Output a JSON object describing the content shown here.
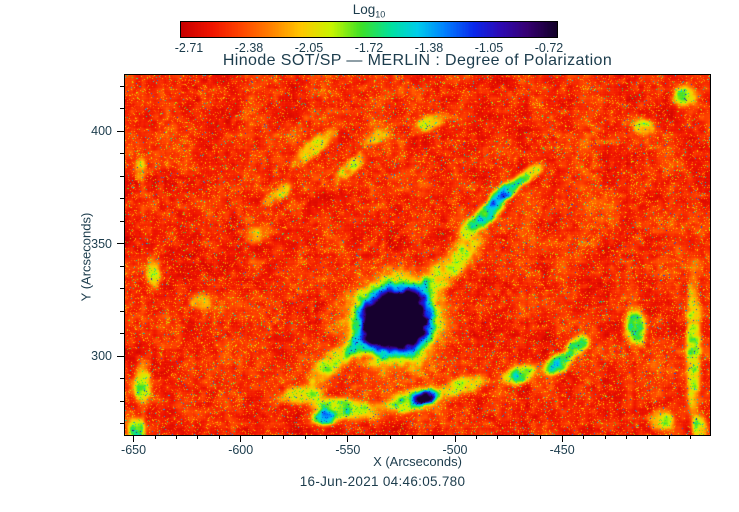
{
  "footer": "16-Jun-2021 04:46:05.780",
  "colors": {
    "background": "#ffffff",
    "axis": "#000000",
    "text": "#1c3c4c"
  },
  "chart_data": {
    "type": "heatmap",
    "title": "Hinode SOT/SP — MERLIN : Degree of Polarization",
    "instrument": "Hinode SOT/SP",
    "quantity": "Degree of Polarization (Log10)",
    "colorbar": {
      "label": "Log",
      "label_sub": "10",
      "tick_labels": [
        "-2.71",
        "-2.38",
        "-2.05",
        "-1.72",
        "-1.38",
        "-1.05",
        "-0.72"
      ],
      "value_range_log10": [
        -2.71,
        -0.72
      ],
      "orientation": "horizontal",
      "position": "top"
    },
    "x": {
      "label": "X (Arcseconds)",
      "range": [
        -654,
        -381
      ],
      "ticks": [
        -650,
        -600,
        -550,
        -500,
        -450
      ],
      "minor_step": 10
    },
    "y": {
      "label": "Y (Arcseconds)",
      "range": [
        265,
        425
      ],
      "ticks": [
        300,
        350,
        400
      ],
      "minor_step": 10
    },
    "colormap_note": "low=red high=black; stops are [t,r,g,b] with t in 0..1 spanning Log10 -2.71..-0.72",
    "colormap": [
      [
        0.0,
        200,
        0,
        0
      ],
      [
        0.08,
        240,
        20,
        0
      ],
      [
        0.16,
        255,
        70,
        0
      ],
      [
        0.24,
        255,
        130,
        0
      ],
      [
        0.32,
        255,
        200,
        0
      ],
      [
        0.4,
        200,
        245,
        0
      ],
      [
        0.48,
        60,
        225,
        40
      ],
      [
        0.56,
        0,
        225,
        160
      ],
      [
        0.63,
        0,
        205,
        235
      ],
      [
        0.7,
        0,
        130,
        255
      ],
      [
        0.78,
        10,
        40,
        235
      ],
      [
        0.85,
        45,
        10,
        180
      ],
      [
        0.92,
        55,
        0,
        115
      ],
      [
        1.0,
        18,
        0,
        40
      ]
    ],
    "background_description": "speckled red-orange quiet sun with sparse yellow-green and rare cyan specks, faint vertical scan striping",
    "feature_format": "[x_arcsec, y_arcsec, rx_arcsec, ry_arcsec, rotation_deg, amplitude_0to1] gaussian-squared blobs of elevated polarization",
    "features": [
      [
        -528,
        316,
        8.5,
        8,
        0,
        1.0
      ],
      [
        -528,
        316,
        13.5,
        12.5,
        0,
        0.55
      ],
      [
        -528,
        316,
        15.5,
        14,
        0,
        0.4
      ],
      [
        -528,
        316,
        18.5,
        17,
        0,
        0.4
      ],
      [
        -528,
        316,
        24,
        22,
        0,
        0.26
      ],
      [
        -505,
        338,
        26,
        6,
        43,
        0.28
      ],
      [
        -487,
        362,
        12,
        4,
        40,
        0.5
      ],
      [
        -477,
        373,
        9,
        3.5,
        35,
        0.55
      ],
      [
        -466,
        381,
        8,
        3,
        35,
        0.35
      ],
      [
        -540,
        310,
        14,
        5,
        43,
        0.3
      ],
      [
        -558,
        297,
        13,
        5,
        40,
        0.28
      ],
      [
        -572,
        283,
        10,
        4,
        10,
        0.3
      ],
      [
        -551,
        277,
        16,
        4.5,
        -8,
        0.35
      ],
      [
        -561,
        273,
        6,
        3.5,
        0,
        0.5
      ],
      [
        -519,
        281,
        14,
        5,
        12,
        0.4
      ],
      [
        -514,
        282,
        6,
        3,
        12,
        0.55
      ],
      [
        -496,
        287,
        10,
        4,
        15,
        0.3
      ],
      [
        -470,
        292,
        8,
        4,
        20,
        0.42
      ],
      [
        -452,
        297,
        8,
        4,
        30,
        0.5
      ],
      [
        -443,
        305,
        6,
        4,
        40,
        0.4
      ],
      [
        -416,
        313,
        5,
        8,
        0,
        0.42
      ],
      [
        -389,
        305,
        3.5,
        30,
        0,
        0.32
      ],
      [
        -393,
        416,
        6,
        5,
        0,
        0.3
      ],
      [
        -412,
        402,
        5,
        4,
        0,
        0.25
      ],
      [
        -646,
        288,
        4,
        10,
        0,
        0.32
      ],
      [
        -649,
        268,
        4,
        5,
        0,
        0.4
      ],
      [
        -641,
        337,
        3.5,
        7,
        0,
        0.25
      ],
      [
        -647,
        383,
        3,
        6,
        0,
        0.22
      ],
      [
        -566,
        393,
        12,
        3.5,
        40,
        0.25
      ],
      [
        -549,
        384,
        9,
        3,
        40,
        0.22
      ],
      [
        -583,
        372,
        8,
        3,
        35,
        0.2
      ],
      [
        -512,
        404,
        9,
        3.5,
        25,
        0.22
      ],
      [
        -536,
        398,
        7,
        3,
        30,
        0.2
      ],
      [
        -619,
        325,
        5,
        4,
        0,
        0.2
      ],
      [
        -593,
        354,
        6,
        4,
        0,
        0.18
      ],
      [
        -404,
        272,
        6,
        5,
        0,
        0.3
      ],
      [
        -386,
        268,
        4,
        6,
        0,
        0.3
      ]
    ],
    "sunspot_center_arcsec": [
      -528,
      316
    ],
    "timestamp": "16-Jun-2021 04:46:05.780"
  }
}
